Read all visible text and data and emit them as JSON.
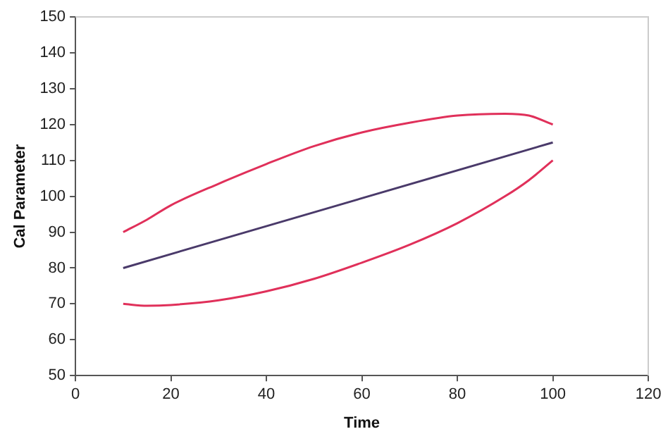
{
  "chart_data": {
    "type": "line",
    "xlabel": "Time",
    "ylabel": "Cal Parameter",
    "xlim": [
      0,
      120
    ],
    "xticks": [
      0,
      20,
      40,
      60,
      80,
      100,
      120
    ],
    "ylim": [
      50,
      150
    ],
    "yticks": [
      50,
      60,
      70,
      80,
      90,
      100,
      110,
      120,
      130,
      140,
      150
    ],
    "grid": false,
    "legend": false,
    "marker": "none",
    "line_style": "solid",
    "series": [
      {
        "color": "#e0305a",
        "x": [
          10,
          15,
          20,
          30,
          40,
          50,
          60,
          70,
          80,
          90,
          95,
          100
        ],
        "values": [
          90,
          93.5,
          97.5,
          103.5,
          109,
          114,
          117.8,
          120.5,
          122.5,
          123,
          122.5,
          120
        ]
      },
      {
        "color": "#4a3a6a",
        "x": [
          10,
          100
        ],
        "values": [
          80,
          115
        ]
      },
      {
        "color": "#e0305a",
        "x": [
          10,
          15,
          20,
          30,
          40,
          50,
          60,
          70,
          80,
          90,
          95,
          100
        ],
        "values": [
          70,
          69.5,
          69.7,
          71,
          73.5,
          77,
          81.5,
          86.5,
          92.5,
          100,
          104.5,
          110
        ]
      }
    ]
  }
}
